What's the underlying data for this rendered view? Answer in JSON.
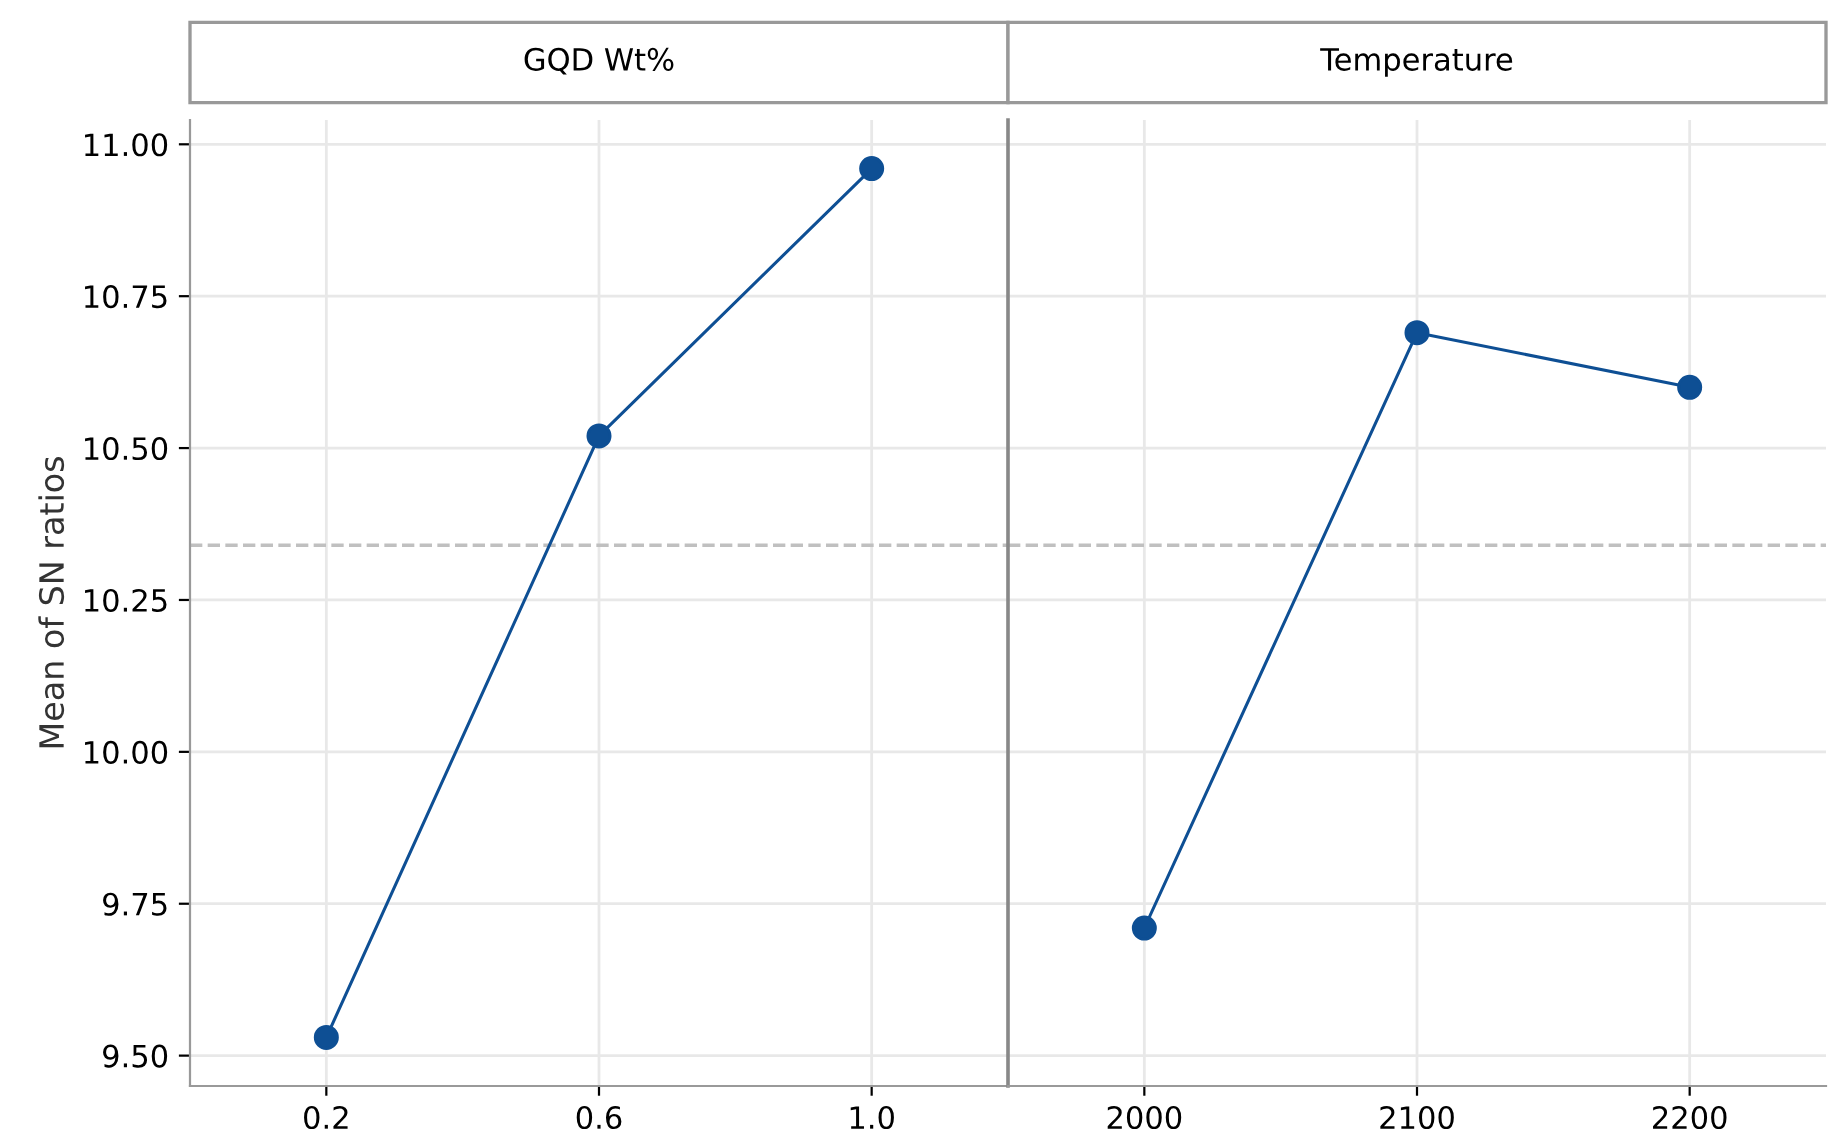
{
  "chart_data": [
    {
      "type": "line",
      "title": "GQD Wt%",
      "ylabel": "Mean of SN ratios",
      "categories": [
        "0.2",
        "0.6",
        "1.0"
      ],
      "series": [
        {
          "color": "#0e4f94",
          "values": [
            9.53,
            10.52,
            10.96
          ]
        }
      ],
      "ylim": [
        9.45,
        11.04
      ],
      "yticks": [
        {
          "value": 9.5,
          "label": "9.50"
        },
        {
          "value": 9.75,
          "label": "9.75"
        },
        {
          "value": 10.0,
          "label": "10.00"
        },
        {
          "value": 10.25,
          "label": "10.25"
        },
        {
          "value": 10.5,
          "label": "10.50"
        },
        {
          "value": 10.75,
          "label": "10.75"
        },
        {
          "value": 11.0,
          "label": "11.00"
        }
      ],
      "ref_lines": [
        {
          "axis": "y",
          "value": 10.34,
          "color": "#c0c0c0",
          "line_style": "dashed"
        }
      ],
      "grid": true,
      "marker": "circle",
      "line_style": "solid"
    },
    {
      "type": "line",
      "title": "Temperature",
      "categories": [
        "2000",
        "2100",
        "2200"
      ],
      "series": [
        {
          "color": "#0e4f94",
          "values": [
            9.71,
            10.69,
            10.6
          ]
        }
      ],
      "ylim": [
        9.45,
        11.04
      ],
      "yticks": [
        9.5,
        9.75,
        10.0,
        10.25,
        10.5,
        10.75,
        11.0
      ],
      "ref_lines": [
        {
          "axis": "y",
          "value": 10.34,
          "color": "#c0c0c0",
          "line_style": "dashed"
        }
      ],
      "grid": true,
      "marker": "circle",
      "line_style": "solid",
      "tick_labels": "x"
    }
  ]
}
